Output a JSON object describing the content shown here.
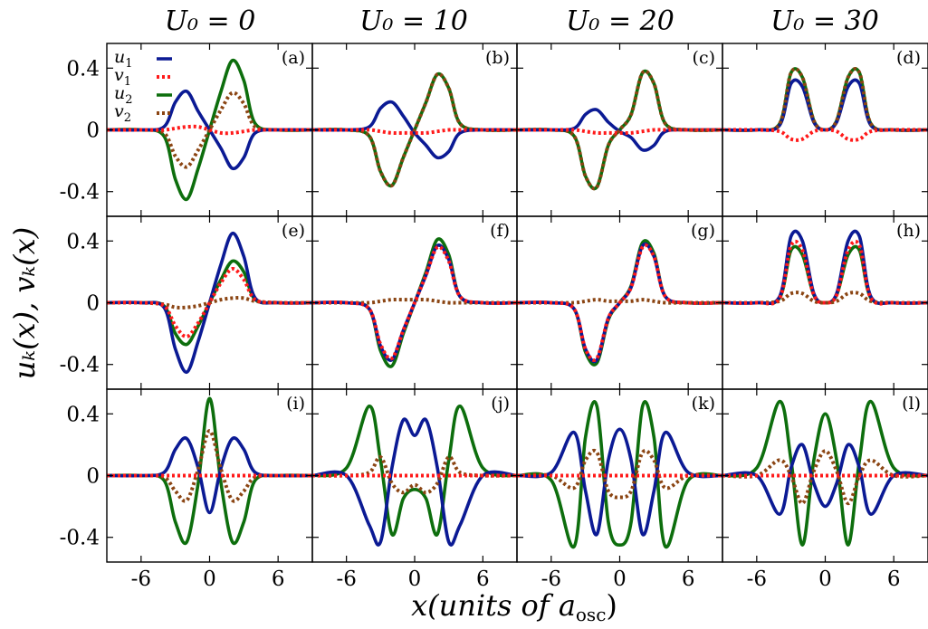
{
  "chart_data": {
    "type": "line",
    "title": "",
    "column_titles": [
      "U₀ = 0",
      "U₀ = 10",
      "U₀ = 20",
      "U₀ = 30"
    ],
    "ylabel": "uₖ(x), vₖ(x)",
    "xlabel": "x(units of aₒₛ꜀)",
    "xlabel_main": "x(units of a",
    "xlabel_sub": "osc",
    "xlabel_end": ")",
    "xlim": [
      -9,
      9
    ],
    "ylim": [
      -0.56,
      0.56
    ],
    "x_ticks": [
      -6,
      0,
      6
    ],
    "x_tick_labels": [
      "-6",
      "0",
      "6"
    ],
    "y_ticks": [
      -0.4,
      0,
      0.4
    ],
    "y_tick_labels": [
      "-0.4",
      "0",
      "0.4"
    ],
    "grid": false,
    "legend": {
      "placement": "top-left of panel (a)",
      "entries": [
        {
          "name": "u1",
          "label": "u",
          "sub": "1",
          "color": "#0b1a94",
          "style": "solid"
        },
        {
          "name": "v1",
          "label": "v",
          "sub": "1",
          "color": "#ff1a1a",
          "style": "dotted"
        },
        {
          "name": "u2",
          "label": "u",
          "sub": "2",
          "color": "#0d6e0d",
          "style": "solid"
        },
        {
          "name": "v2",
          "label": "v",
          "sub": "2",
          "color": "#8b4513",
          "style": "dotted"
        }
      ]
    },
    "x_sample": [
      -9,
      -6,
      -4,
      -3,
      -2,
      -1,
      0,
      1,
      2,
      3,
      4,
      6,
      9
    ],
    "panels": [
      {
        "label": "(a)",
        "series": {
          "u1": [
            0,
            0,
            0.02,
            0.18,
            0.25,
            0.12,
            0,
            -0.12,
            -0.25,
            -0.18,
            -0.02,
            0,
            0
          ],
          "v1": [
            0,
            0,
            0,
            0.01,
            0.02,
            0.02,
            0,
            -0.02,
            -0.02,
            -0.01,
            0,
            0,
            0
          ],
          "u2": [
            0,
            0,
            -0.04,
            -0.32,
            -0.45,
            -0.25,
            0,
            0.25,
            0.45,
            0.32,
            0.04,
            0,
            0
          ],
          "v2": [
            0,
            0,
            -0.02,
            -0.17,
            -0.24,
            -0.13,
            0,
            0.13,
            0.24,
            0.17,
            0.02,
            0,
            0
          ]
        }
      },
      {
        "label": "(b)",
        "series": {
          "u1": [
            0,
            0,
            0.02,
            0.14,
            0.18,
            0.09,
            -0.02,
            -0.1,
            -0.18,
            -0.14,
            -0.02,
            0,
            0
          ],
          "v1": [
            0,
            0,
            0,
            -0.01,
            -0.02,
            -0.02,
            -0.02,
            -0.02,
            -0.01,
            0,
            0,
            0,
            0
          ],
          "u2": [
            0,
            0,
            -0.04,
            -0.27,
            -0.36,
            -0.18,
            0,
            0.18,
            0.36,
            0.27,
            0.04,
            0,
            0
          ],
          "v2": [
            0,
            0,
            -0.04,
            -0.27,
            -0.36,
            -0.18,
            0,
            0.18,
            0.36,
            0.27,
            0.04,
            0,
            0
          ]
        }
      },
      {
        "label": "(c)",
        "series": {
          "u1": [
            0,
            0,
            0.01,
            0.1,
            0.13,
            0.05,
            -0.01,
            -0.05,
            -0.13,
            -0.1,
            -0.01,
            0,
            0
          ],
          "v1": [
            0,
            0,
            0,
            -0.01,
            -0.02,
            -0.02,
            -0.02,
            -0.02,
            -0.01,
            0,
            0,
            0,
            0
          ],
          "u2": [
            0,
            0,
            -0.04,
            -0.3,
            -0.37,
            -0.1,
            0,
            0.1,
            0.37,
            0.3,
            0.04,
            0,
            0
          ],
          "v2": [
            0,
            0,
            -0.04,
            -0.3,
            -0.37,
            -0.1,
            0,
            0.1,
            0.37,
            0.3,
            0.04,
            0,
            0
          ]
        }
      },
      {
        "label": "(d)",
        "series": {
          "u1": [
            0,
            0,
            0.03,
            0.3,
            0.28,
            0.05,
            0,
            0.05,
            0.28,
            0.3,
            0.03,
            0,
            0
          ],
          "v1": [
            0,
            0,
            -0.01,
            -0.06,
            -0.06,
            -0.01,
            0,
            -0.01,
            -0.06,
            -0.06,
            -0.01,
            0,
            0
          ],
          "u2": [
            0,
            0,
            0.04,
            0.37,
            0.34,
            0.06,
            0,
            0.06,
            0.34,
            0.37,
            0.04,
            0,
            0
          ],
          "v2": [
            0,
            0,
            0.04,
            0.37,
            0.34,
            0.06,
            0,
            0.06,
            0.34,
            0.37,
            0.04,
            0,
            0
          ]
        }
      },
      {
        "label": "(e)",
        "series": {
          "u1": [
            0,
            0,
            -0.03,
            -0.3,
            -0.45,
            -0.25,
            0,
            0.25,
            0.45,
            0.3,
            0.03,
            0,
            0
          ],
          "v1": [
            0,
            0,
            -0.02,
            -0.15,
            -0.22,
            -0.13,
            0,
            0.13,
            0.22,
            0.15,
            0.02,
            0,
            0
          ],
          "u2": [
            0,
            0,
            -0.02,
            -0.2,
            -0.27,
            -0.15,
            0,
            0.15,
            0.27,
            0.2,
            0.02,
            0,
            0
          ],
          "v2": [
            0,
            0,
            -0.01,
            -0.03,
            -0.03,
            -0.02,
            0,
            0.02,
            0.03,
            0.03,
            0.01,
            0,
            0
          ]
        }
      },
      {
        "label": "(f)",
        "series": {
          "u1": [
            0,
            0,
            -0.04,
            -0.28,
            -0.37,
            -0.18,
            0,
            0.18,
            0.37,
            0.28,
            0.04,
            0,
            0
          ],
          "v1": [
            0,
            0,
            -0.04,
            -0.27,
            -0.36,
            -0.18,
            0,
            0.18,
            0.36,
            0.27,
            0.04,
            0,
            0
          ],
          "u2": [
            0,
            0,
            -0.04,
            -0.31,
            -0.41,
            -0.2,
            0,
            0.2,
            0.41,
            0.31,
            0.04,
            0,
            0
          ],
          "v2": [
            0,
            0,
            0,
            0.01,
            0.02,
            0.02,
            0.02,
            0.02,
            0.01,
            0,
            0,
            0,
            0
          ]
        }
      },
      {
        "label": "(g)",
        "series": {
          "u1": [
            0,
            0,
            -0.04,
            -0.3,
            -0.37,
            -0.1,
            0,
            0.1,
            0.37,
            0.3,
            0.04,
            0,
            0
          ],
          "v1": [
            0,
            0,
            -0.04,
            -0.3,
            -0.36,
            -0.1,
            0,
            0.1,
            0.36,
            0.3,
            0.04,
            0,
            0
          ],
          "u2": [
            0,
            0,
            -0.04,
            -0.32,
            -0.39,
            -0.11,
            0,
            0.11,
            0.39,
            0.32,
            0.04,
            0,
            0
          ],
          "v2": [
            0,
            0,
            0,
            0.01,
            0.02,
            0.01,
            0.01,
            0.01,
            0.02,
            0.01,
            0,
            0,
            0
          ]
        }
      },
      {
        "label": "(h)",
        "series": {
          "u1": [
            0,
            0,
            0.04,
            0.43,
            0.4,
            0.06,
            0,
            0.06,
            0.4,
            0.43,
            0.04,
            0,
            0
          ],
          "v1": [
            0,
            0,
            0.03,
            0.37,
            0.34,
            0.05,
            0,
            0.05,
            0.34,
            0.37,
            0.03,
            0,
            0
          ],
          "u2": [
            0,
            0,
            0.03,
            0.34,
            0.31,
            0.05,
            0,
            0.05,
            0.31,
            0.34,
            0.03,
            0,
            0
          ],
          "v2": [
            0,
            0,
            0.01,
            0.06,
            0.06,
            0.01,
            0,
            0.01,
            0.06,
            0.06,
            0.01,
            0,
            0
          ]
        }
      },
      {
        "label": "(i)",
        "series": {
          "u1": [
            0,
            0,
            0.02,
            0.17,
            0.24,
            0.05,
            -0.24,
            0.05,
            0.24,
            0.17,
            0.02,
            0,
            0
          ],
          "v1": [
            0,
            0,
            0,
            0,
            0,
            0,
            0,
            0,
            0,
            0,
            0,
            0,
            0
          ],
          "u2": [
            0,
            0,
            -0.03,
            -0.3,
            -0.43,
            -0.05,
            0.5,
            -0.05,
            -0.43,
            -0.3,
            -0.03,
            0,
            0
          ],
          "v2": [
            0,
            0,
            -0.01,
            -0.1,
            -0.16,
            0.04,
            0.29,
            0.04,
            -0.16,
            -0.1,
            -0.01,
            0,
            0
          ]
        }
      },
      {
        "label": "(j)",
        "series": {
          "u1": [
            0,
            0,
            -0.32,
            -0.43,
            0.05,
            0.36,
            0.26,
            0.36,
            0.05,
            -0.43,
            -0.32,
            0,
            0
          ],
          "v1": [
            0,
            0,
            0,
            0,
            0,
            0,
            0,
            0,
            0,
            0,
            0,
            0,
            0
          ],
          "u2": [
            0,
            0.05,
            0.45,
            0.1,
            -0.38,
            -0.15,
            -0.09,
            -0.15,
            -0.38,
            0.1,
            0.45,
            0.05,
            0
          ],
          "v2": [
            0,
            0,
            0.02,
            0.12,
            -0.05,
            -0.11,
            -0.06,
            -0.11,
            -0.05,
            0.12,
            0.02,
            0,
            0
          ]
        }
      },
      {
        "label": "(k)",
        "series": {
          "u1": [
            0,
            0.02,
            0.28,
            -0.1,
            -0.38,
            0.1,
            0.3,
            0.1,
            -0.38,
            -0.1,
            0.28,
            0.02,
            0
          ],
          "v1": [
            0,
            0,
            0,
            0,
            0,
            0,
            0,
            0,
            0,
            0,
            0,
            0,
            0
          ],
          "u2": [
            0,
            -0.03,
            -0.46,
            0.25,
            0.45,
            -0.3,
            -0.45,
            -0.3,
            0.45,
            0.25,
            -0.46,
            -0.03,
            0
          ],
          "v2": [
            0,
            0,
            -0.08,
            0.1,
            0.15,
            -0.1,
            -0.14,
            -0.1,
            0.15,
            0.1,
            -0.08,
            0,
            0
          ]
        }
      },
      {
        "label": "(l)",
        "series": {
          "u1": [
            0,
            0,
            -0.25,
            0.05,
            0.2,
            -0.05,
            -0.2,
            -0.05,
            0.2,
            0.05,
            -0.25,
            0,
            0
          ],
          "v1": [
            0,
            0,
            0,
            0,
            0,
            0,
            0,
            0,
            0,
            0,
            0,
            0,
            0
          ],
          "u2": [
            0,
            0.05,
            0.48,
            0.1,
            -0.45,
            0.1,
            0.4,
            0.1,
            -0.45,
            0.1,
            0.48,
            0.05,
            0
          ],
          "v2": [
            0,
            0,
            0.1,
            0,
            -0.18,
            0.03,
            0.16,
            0.03,
            -0.18,
            0,
            0.1,
            0,
            0
          ]
        }
      }
    ]
  }
}
